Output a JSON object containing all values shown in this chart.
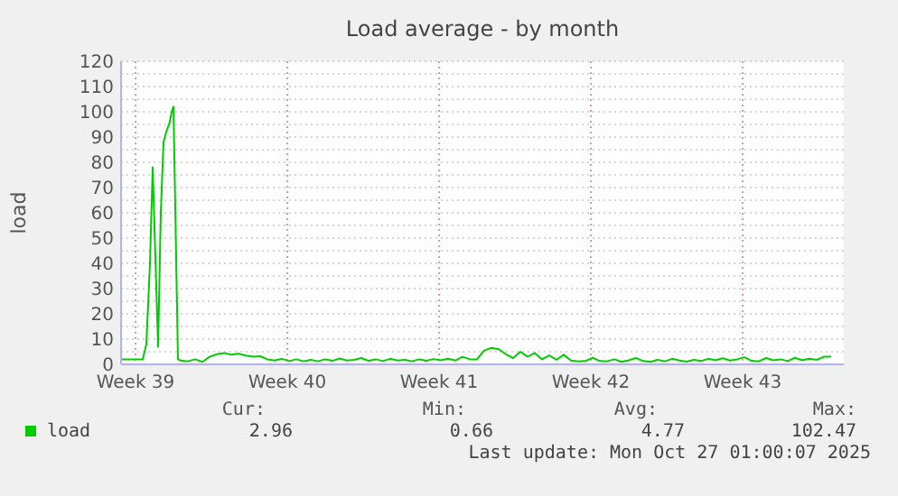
{
  "chart_data": {
    "type": "line",
    "title": "Load average - by month",
    "ylabel": "load",
    "xlim": [
      "2025-09-23T14:00",
      "2025-10-26T22:00"
    ],
    "xticks": [
      {
        "value": "2025-09-24T06:00",
        "label": "Week 39"
      },
      {
        "value": "2025-10-01T06:00",
        "label": "Week 40"
      },
      {
        "value": "2025-10-08T06:00",
        "label": "Week 41"
      },
      {
        "value": "2025-10-15T06:00",
        "label": "Week 42"
      },
      {
        "value": "2025-10-22T06:00",
        "label": "Week 43"
      }
    ],
    "ylim": [
      0,
      120
    ],
    "yticks": [
      0,
      10,
      20,
      30,
      40,
      50,
      60,
      70,
      80,
      90,
      100,
      110,
      120
    ],
    "grid": true,
    "legend": "bottom",
    "marker": "none",
    "line_style": "solid",
    "series": [
      {
        "name": "load",
        "color": "#00cc00",
        "x": [
          "2025-09-23T14:00",
          "2025-09-24T00:00",
          "2025-09-24T14:00",
          "2025-09-24T18:00",
          "2025-09-24T22:00",
          "2025-09-25T01:00",
          "2025-09-25T07:00",
          "2025-09-25T10:00",
          "2025-09-25T13:00",
          "2025-09-25T16:00",
          "2025-09-25T20:00",
          "2025-09-25T22:00",
          "2025-09-26T00:00",
          "2025-09-26T05:00",
          "2025-09-26T08:00",
          "2025-09-26T16:00",
          "2025-09-27T00:00",
          "2025-09-27T08:00",
          "2025-09-27T16:00",
          "2025-09-28T00:00",
          "2025-09-28T08:00",
          "2025-09-28T16:00",
          "2025-09-29T00:00",
          "2025-09-29T08:00",
          "2025-09-29T16:00",
          "2025-09-30T00:00",
          "2025-09-30T08:00",
          "2025-09-30T16:00",
          "2025-10-01T00:00",
          "2025-10-01T08:00",
          "2025-10-01T16:00",
          "2025-10-02T00:00",
          "2025-10-02T08:00",
          "2025-10-02T16:00",
          "2025-10-03T00:00",
          "2025-10-03T08:00",
          "2025-10-03T16:00",
          "2025-10-04T00:00",
          "2025-10-04T08:00",
          "2025-10-04T16:00",
          "2025-10-05T00:00",
          "2025-10-05T08:00",
          "2025-10-05T16:00",
          "2025-10-06T00:00",
          "2025-10-06T08:00",
          "2025-10-06T16:00",
          "2025-10-07T00:00",
          "2025-10-07T08:00",
          "2025-10-07T16:00",
          "2025-10-08T00:00",
          "2025-10-08T08:00",
          "2025-10-08T16:00",
          "2025-10-09T00:00",
          "2025-10-09T08:00",
          "2025-10-09T16:00",
          "2025-10-10T00:00",
          "2025-10-10T08:00",
          "2025-10-10T16:00",
          "2025-10-11T00:00",
          "2025-10-11T08:00",
          "2025-10-11T16:00",
          "2025-10-12T00:00",
          "2025-10-12T08:00",
          "2025-10-12T16:00",
          "2025-10-13T00:00",
          "2025-10-13T08:00",
          "2025-10-13T16:00",
          "2025-10-14T00:00",
          "2025-10-14T08:00",
          "2025-10-14T16:00",
          "2025-10-15T00:00",
          "2025-10-15T08:00",
          "2025-10-15T16:00",
          "2025-10-16T00:00",
          "2025-10-16T08:00",
          "2025-10-16T16:00",
          "2025-10-17T00:00",
          "2025-10-17T08:00",
          "2025-10-17T16:00",
          "2025-10-18T00:00",
          "2025-10-18T08:00",
          "2025-10-18T16:00",
          "2025-10-19T00:00",
          "2025-10-19T08:00",
          "2025-10-19T16:00",
          "2025-10-20T00:00",
          "2025-10-20T08:00",
          "2025-10-20T16:00",
          "2025-10-21T00:00",
          "2025-10-21T08:00",
          "2025-10-21T16:00",
          "2025-10-22T00:00",
          "2025-10-22T08:00",
          "2025-10-22T16:00",
          "2025-10-23T00:00",
          "2025-10-23T08:00",
          "2025-10-23T16:00",
          "2025-10-24T00:00",
          "2025-10-24T08:00",
          "2025-10-24T16:00",
          "2025-10-25T00:00",
          "2025-10-25T08:00",
          "2025-10-25T16:00",
          "2025-10-26T00:00",
          "2025-10-26T08:00"
        ],
        "values": [
          2,
          2,
          2,
          8,
          40,
          78,
          7,
          60,
          88,
          92,
          96,
          100,
          102,
          2,
          1.5,
          1.2,
          2,
          1,
          3,
          4,
          4.5,
          3.8,
          4.2,
          3.5,
          3,
          3.2,
          2,
          1.5,
          2.2,
          1.3,
          2,
          1.2,
          1.8,
          1.2,
          2,
          1.4,
          2.3,
          1.5,
          1.8,
          2.5,
          1.4,
          2,
          1.3,
          2.2,
          1.5,
          1.8,
          1.2,
          2,
          1.4,
          2.1,
          1.6,
          2.2,
          1.5,
          3,
          2,
          2,
          5.5,
          6.5,
          6,
          4,
          2.5,
          5,
          3,
          4.5,
          2,
          3.5,
          1.8,
          3.8,
          1.5,
          1.2,
          1.3,
          2.6,
          1.3,
          1.2,
          2,
          1,
          1.6,
          2.5,
          1.3,
          1,
          1.8,
          1.2,
          2.2,
          1.5,
          1.1,
          1.8,
          1.3,
          2.2,
          1.6,
          2.4,
          1.5,
          2,
          2.8,
          1.4,
          1.2,
          2.5,
          1.6,
          2,
          1.3,
          2.6,
          1.6,
          2.2,
          1.8,
          3,
          3
        ]
      }
    ],
    "annotations": [
      "Cur:",
      "Min:",
      "Avg:",
      "Max:",
      "2.96",
      "0.66",
      "4.77",
      "102.47",
      "Last update: Mon Oct 27 01:00:07 2025"
    ]
  }
}
